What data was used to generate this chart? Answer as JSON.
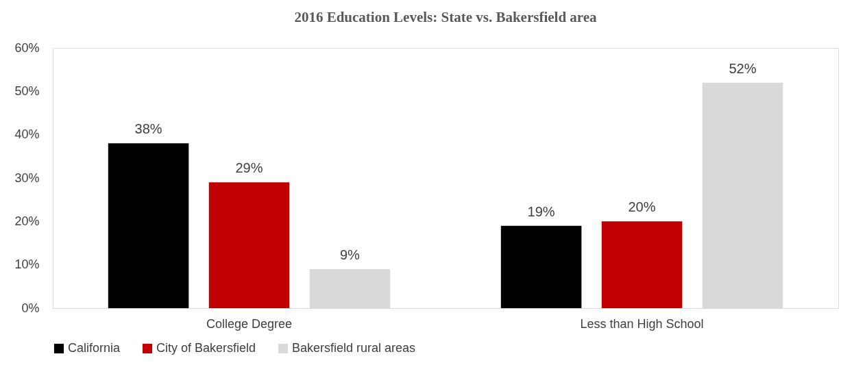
{
  "chart_data": {
    "type": "bar",
    "title": "2016 Education Levels: State vs. Bakersfield area",
    "categories": [
      "College Degree",
      "Less than High School"
    ],
    "series": [
      {
        "name": "California",
        "color": "#000000",
        "values": [
          38,
          19
        ],
        "value_labels": [
          "38%",
          "19%"
        ]
      },
      {
        "name": "City of Bakersfield",
        "color": "#c00000",
        "values": [
          29,
          20
        ],
        "value_labels": [
          "29%",
          "20%"
        ]
      },
      {
        "name": "Bakersfield rural areas",
        "color": "#d9d9d9",
        "values": [
          9,
          52
        ],
        "value_labels": [
          "9%",
          "52%"
        ]
      }
    ],
    "ylim": [
      0,
      60
    ],
    "yticks": [
      {
        "value": 0,
        "label": "0%"
      },
      {
        "value": 10,
        "label": "10%"
      },
      {
        "value": 20,
        "label": "20%"
      },
      {
        "value": 30,
        "label": "30%"
      },
      {
        "value": 40,
        "label": "40%"
      },
      {
        "value": 50,
        "label": "50%"
      },
      {
        "value": 60,
        "label": "60%"
      }
    ],
    "grid": false,
    "legend": "bottom"
  }
}
